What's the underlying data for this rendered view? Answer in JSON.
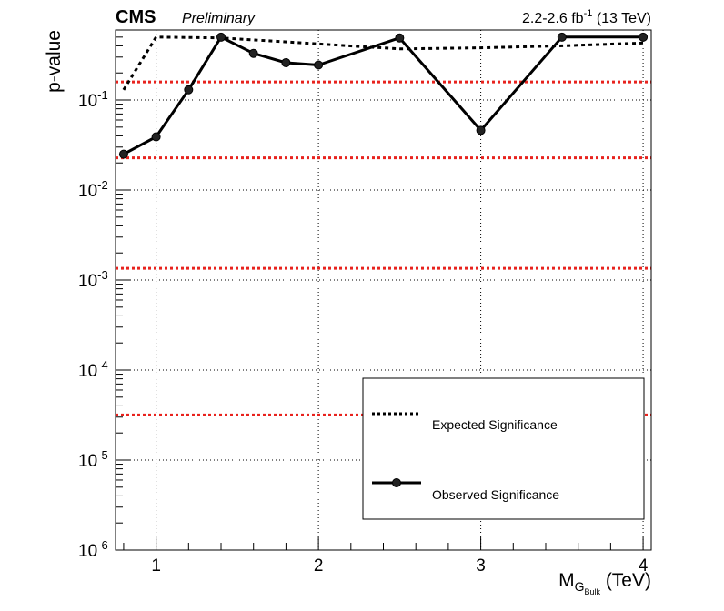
{
  "header": {
    "experiment": "CMS",
    "status": "Preliminary",
    "lumi_main": "2.2-2.6 fb",
    "lumi_sup": "-1",
    "lumi_energy": "(13 TeV)"
  },
  "chart_data": {
    "type": "line",
    "xlabel_main": "M",
    "xlabel_sub": "G",
    "xlabel_subsub": "Bulk",
    "xlabel_unit": "(TeV)",
    "ylabel": "p-value",
    "xlim": [
      0.75,
      4.05
    ],
    "ylim": [
      1e-06,
      0.6
    ],
    "y_scale": "log",
    "grid": true,
    "x_ticks": [
      1,
      2,
      3,
      4
    ],
    "x_tick_labels": [
      "1",
      "2",
      "3",
      "4"
    ],
    "y_ticks": [
      1e-06,
      1e-05,
      0.0001,
      0.001,
      0.01,
      0.1
    ],
    "y_tick_bases": [
      "10",
      "10",
      "10",
      "10",
      "10",
      "10"
    ],
    "y_tick_exps": [
      "-6",
      "-5",
      "-4",
      "-3",
      "-2",
      "-1"
    ],
    "reference_lines": [
      0.159,
      0.0228,
      0.00135,
      3.17e-05
    ],
    "reference_color": "#e8231e",
    "legend_placement": "lower-right",
    "series": [
      {
        "name": "Expected Significance",
        "style": "dashed",
        "markers": false,
        "color": "#000000",
        "x": [
          0.8,
          1.0,
          1.4,
          2.0,
          2.5,
          3.0,
          3.5,
          4.0
        ],
        "y": [
          0.13,
          0.5,
          0.49,
          0.42,
          0.37,
          0.38,
          0.4,
          0.43
        ]
      },
      {
        "name": "Observed Significance",
        "style": "solid",
        "markers": true,
        "color": "#000000",
        "x": [
          0.8,
          1.0,
          1.2,
          1.4,
          1.6,
          1.8,
          2.0,
          2.5,
          3.0,
          3.5,
          4.0
        ],
        "y": [
          0.025,
          0.039,
          0.13,
          0.5,
          0.33,
          0.26,
          0.245,
          0.49,
          0.046,
          0.5,
          0.5
        ]
      }
    ]
  }
}
